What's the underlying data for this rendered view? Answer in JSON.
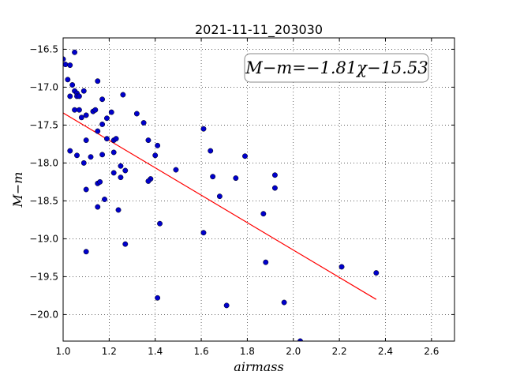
{
  "chart_data": {
    "type": "scatter",
    "title": "2021-11-11_203030",
    "xlabel": "airmass",
    "ylabel": "M−m",
    "annotation": "M−m=−1.81χ−15.53",
    "xlim": [
      1.0,
      2.7
    ],
    "ylim": [
      -20.35,
      -16.35
    ],
    "x_ticks": [
      1.0,
      1.2,
      1.4,
      1.6,
      1.8,
      2.0,
      2.2,
      2.4,
      2.6
    ],
    "x_tick_labels": [
      "1.0",
      "1.2",
      "1.4",
      "1.6",
      "1.8",
      "2.0",
      "2.2",
      "2.4",
      "2.6"
    ],
    "y_ticks": [
      -16.5,
      -17.0,
      -17.5,
      -18.0,
      -18.5,
      -19.0,
      -19.5,
      -20.0
    ],
    "y_tick_labels": [
      "−16.5",
      "−17.0",
      "−17.5",
      "−18.0",
      "−18.5",
      "−19.0",
      "−19.5",
      "−20.0"
    ],
    "grid": true,
    "series": [
      {
        "kind": "scatter",
        "color": "#0000cc",
        "points": [
          [
            1.0,
            -16.63
          ],
          [
            1.01,
            -16.7
          ],
          [
            1.03,
            -16.71
          ],
          [
            1.05,
            -16.54
          ],
          [
            1.02,
            -16.9
          ],
          [
            1.04,
            -16.97
          ],
          [
            1.05,
            -17.05
          ],
          [
            1.03,
            -17.12
          ],
          [
            1.06,
            -17.08
          ],
          [
            1.06,
            -17.12
          ],
          [
            1.07,
            -17.12
          ],
          [
            1.09,
            -17.05
          ],
          [
            1.05,
            -17.3
          ],
          [
            1.07,
            -17.3
          ],
          [
            1.08,
            -17.4
          ],
          [
            1.1,
            -17.37
          ],
          [
            1.15,
            -16.92
          ],
          [
            1.17,
            -17.16
          ],
          [
            1.13,
            -17.32
          ],
          [
            1.14,
            -17.3
          ],
          [
            1.21,
            -17.33
          ],
          [
            1.19,
            -17.41
          ],
          [
            1.17,
            -17.49
          ],
          [
            1.15,
            -17.58
          ],
          [
            1.26,
            -17.1
          ],
          [
            1.03,
            -17.84
          ],
          [
            1.06,
            -17.9
          ],
          [
            1.1,
            -17.7
          ],
          [
            1.09,
            -18.0
          ],
          [
            1.12,
            -17.92
          ],
          [
            1.17,
            -17.89
          ],
          [
            1.19,
            -17.68
          ],
          [
            1.22,
            -17.7
          ],
          [
            1.23,
            -17.68
          ],
          [
            1.22,
            -17.86
          ],
          [
            1.22,
            -18.13
          ],
          [
            1.1,
            -18.35
          ],
          [
            1.15,
            -18.27
          ],
          [
            1.16,
            -18.25
          ],
          [
            1.18,
            -18.48
          ],
          [
            1.15,
            -18.58
          ],
          [
            1.25,
            -18.04
          ],
          [
            1.27,
            -18.1
          ],
          [
            1.25,
            -18.19
          ],
          [
            1.24,
            -18.62
          ],
          [
            1.32,
            -17.35
          ],
          [
            1.35,
            -17.47
          ],
          [
            1.37,
            -17.7
          ],
          [
            1.41,
            -17.77
          ],
          [
            1.4,
            -17.9
          ],
          [
            1.38,
            -18.21
          ],
          [
            1.37,
            -18.24
          ],
          [
            1.42,
            -18.8
          ],
          [
            1.49,
            -18.09
          ],
          [
            1.1,
            -19.17
          ],
          [
            1.27,
            -19.07
          ],
          [
            1.61,
            -17.55
          ],
          [
            1.64,
            -17.84
          ],
          [
            1.65,
            -18.18
          ],
          [
            1.68,
            -18.44
          ],
          [
            1.61,
            -18.92
          ],
          [
            1.75,
            -18.2
          ],
          [
            1.79,
            -17.91
          ],
          [
            1.87,
            -18.67
          ],
          [
            1.92,
            -18.16
          ],
          [
            1.92,
            -18.33
          ],
          [
            1.88,
            -19.31
          ],
          [
            2.21,
            -19.37
          ],
          [
            2.36,
            -19.45
          ],
          [
            1.41,
            -19.78
          ],
          [
            1.71,
            -19.88
          ],
          [
            1.96,
            -19.84
          ],
          [
            2.03,
            -20.35
          ]
        ]
      },
      {
        "kind": "line",
        "name": "M−m=−1.81χ−15.53",
        "color": "#ff0000",
        "slope": -1.81,
        "intercept": -15.53,
        "x": [
          1.0,
          2.36
        ],
        "y": [
          -17.34,
          -19.8
        ]
      }
    ]
  }
}
